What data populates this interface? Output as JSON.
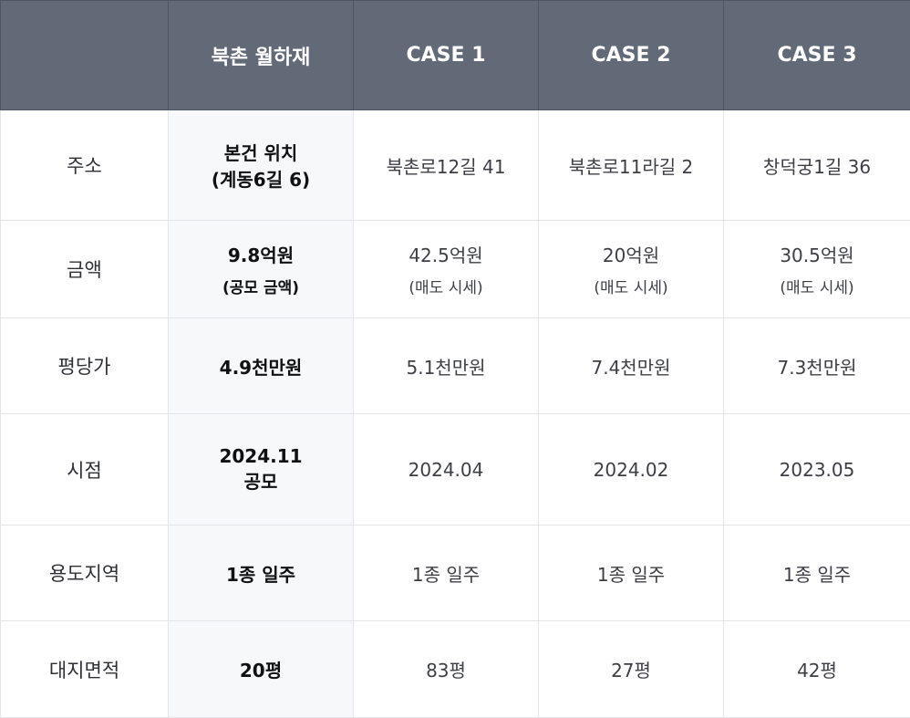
{
  "header": [
    "",
    "북촌 월하재",
    "CASE 1",
    "CASE 2",
    "CASE 3"
  ],
  "rows": {
    "address": {
      "label": "주소",
      "subject": [
        "본건 위치",
        "(계동6길 6)"
      ],
      "cases": [
        "북촌로12길 41",
        "북촌로11라길 2",
        "창덕궁1길 36"
      ]
    },
    "amount": {
      "label": "금액",
      "subject": {
        "main": "9.8억원",
        "sub": "(공모 금액)"
      },
      "cases": [
        {
          "main": "42.5억원",
          "sub": "(매도 시세)"
        },
        {
          "main": "20억원",
          "sub": "(매도 시세)"
        },
        {
          "main": "30.5억원",
          "sub": "(매도 시세)"
        }
      ]
    },
    "price_per_pyeong": {
      "label": "평당가",
      "subject": "4.9천만원",
      "cases": [
        "5.1천만원",
        "7.4천만원",
        "7.3천만원"
      ]
    },
    "time": {
      "label": "시점",
      "subject": [
        "2024.11",
        "공모"
      ],
      "cases": [
        "2024.04",
        "2024.02",
        "2023.05"
      ]
    },
    "zoning": {
      "label": "용도지역",
      "subject": "1종 일주",
      "cases": [
        "1종 일주",
        "1종 일주",
        "1종 일주"
      ]
    },
    "land_area": {
      "label": "대지면적",
      "subject": "20평",
      "cases": [
        "83평",
        "27평",
        "42평"
      ]
    }
  },
  "colors": {
    "header_bg": "#626a78",
    "subject_col_bg": "#f7f8fa",
    "border": "#e3e5e8"
  }
}
